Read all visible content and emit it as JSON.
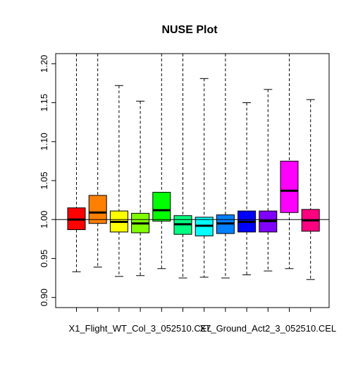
{
  "chart_data": {
    "type": "boxplot",
    "title": "NUSE Plot",
    "xlabel": "",
    "ylabel": "",
    "ylim": [
      0.887,
      1.213
    ],
    "yticks": [
      0.9,
      0.95,
      1.0,
      1.05,
      1.1,
      1.15,
      1.2
    ],
    "ytick_labels": [
      "0.90",
      "0.95",
      "1.00",
      "1.05",
      "1.10",
      "1.15",
      "1.20"
    ],
    "reference_line": 1.0,
    "xtick_labels": [
      {
        "index": 3,
        "label": "X1_Flight_WT_Col_3_052510.CEL"
      },
      {
        "index": 9,
        "label": "X7_Ground_Act2_3_052510.CEL"
      }
    ],
    "boxes": [
      {
        "whisker_low": 0.933,
        "q1": 0.987,
        "median": 1.0,
        "q3": 1.015,
        "whisker_high": 1.213,
        "color": "#FF0000"
      },
      {
        "whisker_low": 0.939,
        "q1": 0.995,
        "median": 1.009,
        "q3": 1.031,
        "whisker_high": 1.213,
        "color": "#FF8000"
      },
      {
        "whisker_low": 0.927,
        "q1": 0.984,
        "median": 0.997,
        "q3": 1.011,
        "whisker_high": 1.172,
        "color": "#FFFF00"
      },
      {
        "whisker_low": 0.928,
        "q1": 0.983,
        "median": 0.995,
        "q3": 1.008,
        "whisker_high": 1.152,
        "color": "#80FF00"
      },
      {
        "whisker_low": 0.937,
        "q1": 0.998,
        "median": 1.012,
        "q3": 1.035,
        "whisker_high": 1.213,
        "color": "#00FF00"
      },
      {
        "whisker_low": 0.925,
        "q1": 0.981,
        "median": 0.994,
        "q3": 1.005,
        "whisker_high": 1.213,
        "color": "#00FF80"
      },
      {
        "whisker_low": 0.926,
        "q1": 0.979,
        "median": 0.992,
        "q3": 1.003,
        "whisker_high": 1.181,
        "color": "#00FFFF"
      },
      {
        "whisker_low": 0.925,
        "q1": 0.982,
        "median": 0.995,
        "q3": 1.006,
        "whisker_high": 1.213,
        "color": "#0080FF"
      },
      {
        "whisker_low": 0.929,
        "q1": 0.984,
        "median": 0.997,
        "q3": 1.011,
        "whisker_high": 1.15,
        "color": "#0000FF"
      },
      {
        "whisker_low": 0.934,
        "q1": 0.984,
        "median": 0.998,
        "q3": 1.011,
        "whisker_high": 1.167,
        "color": "#8000FF"
      },
      {
        "whisker_low": 0.937,
        "q1": 1.009,
        "median": 1.037,
        "q3": 1.075,
        "whisker_high": 1.213,
        "color": "#FF00FF"
      },
      {
        "whisker_low": 0.923,
        "q1": 0.985,
        "median": 0.999,
        "q3": 1.013,
        "whisker_high": 1.154,
        "color": "#FF0080"
      }
    ]
  }
}
